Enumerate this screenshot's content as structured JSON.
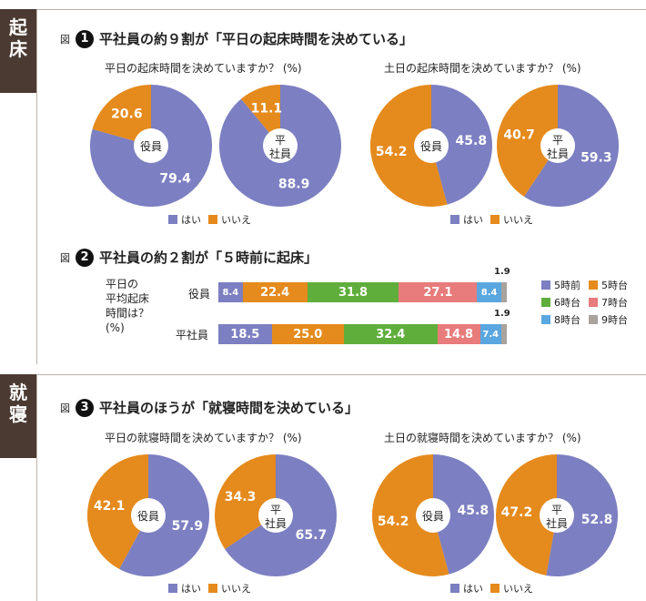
{
  "colors": {
    "hai": "#7c7fc1",
    "iie": "#e58a1c",
    "before5": "#7c7fc1",
    "h5": "#e58a1c",
    "h6": "#5fae3c",
    "h7": "#e87b7b",
    "h8": "#5aa7e0",
    "h9": "#a8a39d"
  },
  "sections": {
    "wake": "起床",
    "sleep": "就寝"
  },
  "fig1": {
    "zu": "図",
    "num": "1",
    "title": "平社員の約９割が「平日の起床時間を決めている」",
    "q_weekday": "平日の起床時間を決めていますか？ (%)",
    "q_weekend": "土日の起床時間を決めていますか？ (%)"
  },
  "fig2": {
    "zu": "図",
    "num": "2",
    "title": "平社員の約２割が「５時前に起床」",
    "side_label": "平日の平均起床時間は？ (%)",
    "side_lines": [
      "平日の",
      "平均起床",
      "時間は？",
      "(%)"
    ],
    "row_yakuin": "役員",
    "row_hira": "平社員",
    "extra_yakuin": "1.9",
    "extra_hira": "1.9"
  },
  "fig3": {
    "zu": "図",
    "num": "3",
    "title": "平社員のほうが「就寝時間を決めている」",
    "q_weekday": "平日の就寝時間を決めていますか？ (%)",
    "q_weekend": "土日の就寝時間を決めていますか？ (%)"
  },
  "legend": {
    "hai": "はい",
    "iie": "いいえ"
  },
  "center_labels": {
    "yakuin": "役員",
    "hira_lines": [
      "平",
      "社員"
    ]
  },
  "chart_data": [
    {
      "type": "pie",
      "title": "平日の起床時間を決めていますか？ (%)",
      "center": "役員",
      "categories": [
        "はい",
        "いいえ"
      ],
      "values": [
        79.4,
        20.6
      ]
    },
    {
      "type": "pie",
      "title": "平日の起床時間を決めていますか？ (%)",
      "center": "平社員",
      "categories": [
        "はい",
        "いいえ"
      ],
      "values": [
        88.9,
        11.1
      ]
    },
    {
      "type": "pie",
      "title": "土日の起床時間を決めていますか？ (%)",
      "center": "役員",
      "categories": [
        "はい",
        "いいえ"
      ],
      "values": [
        45.8,
        54.2
      ]
    },
    {
      "type": "pie",
      "title": "土日の起床時間を決めていますか？ (%)",
      "center": "平社員",
      "categories": [
        "はい",
        "いいえ"
      ],
      "values": [
        59.3,
        40.7
      ]
    },
    {
      "type": "bar",
      "stacked": true,
      "horizontal": true,
      "categories": [
        "役員",
        "平社員"
      ],
      "legend_position": "right",
      "series": [
        {
          "name": "5時前",
          "values": [
            8.4,
            18.5
          ]
        },
        {
          "name": "5時台",
          "values": [
            22.4,
            25.0
          ]
        },
        {
          "name": "6時台",
          "values": [
            31.8,
            32.4
          ]
        },
        {
          "name": "7時台",
          "values": [
            27.1,
            14.8
          ]
        },
        {
          "name": "8時台",
          "values": [
            8.4,
            7.4
          ]
        },
        {
          "name": "9時台",
          "values": [
            1.9,
            1.9
          ]
        }
      ]
    },
    {
      "type": "pie",
      "title": "平日の就寝時間を決めていますか？ (%)",
      "center": "役員",
      "categories": [
        "はい",
        "いいえ"
      ],
      "values": [
        57.9,
        42.1
      ]
    },
    {
      "type": "pie",
      "title": "平日の就寝時間を決めていますか？ (%)",
      "center": "平社員",
      "categories": [
        "はい",
        "いいえ"
      ],
      "values": [
        65.7,
        34.3
      ]
    },
    {
      "type": "pie",
      "title": "土日の就寝時間を決めていますか？ (%)",
      "center": "役員",
      "categories": [
        "はい",
        "いいえ"
      ],
      "values": [
        45.8,
        54.2
      ]
    },
    {
      "type": "pie",
      "title": "土日の就寝時間を決めていますか？ (%)",
      "center": "平社員",
      "categories": [
        "はい",
        "いいえ"
      ],
      "values": [
        52.8,
        47.2
      ]
    }
  ]
}
